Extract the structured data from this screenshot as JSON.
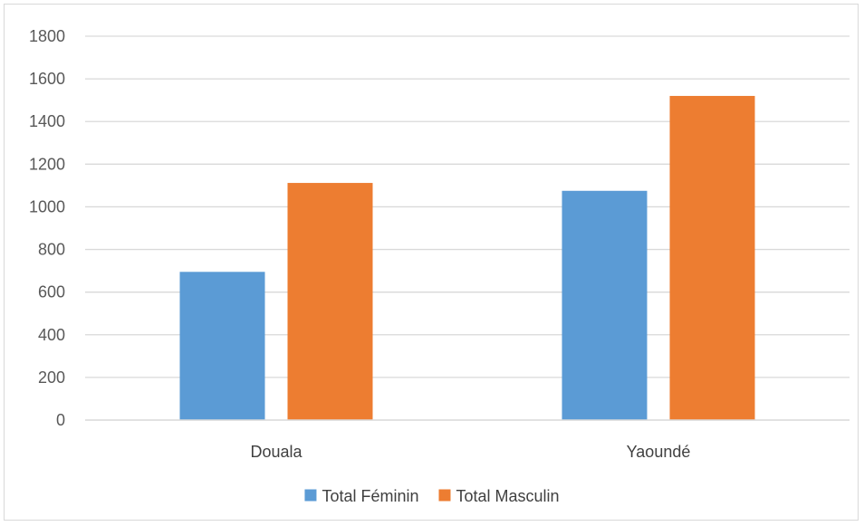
{
  "chart_data": {
    "type": "bar",
    "categories": [
      "Douala",
      "Yaoundé"
    ],
    "series": [
      {
        "name": "Total Féminin",
        "values": [
          695,
          1075
        ],
        "color": "#5b9bd5"
      },
      {
        "name": "Total Masculin",
        "values": [
          1112,
          1520
        ],
        "color": "#ed7d31"
      }
    ],
    "title": "",
    "xlabel": "",
    "ylabel": "",
    "ylim": [
      0,
      1800
    ],
    "yticks": [
      0,
      200,
      400,
      600,
      800,
      1000,
      1200,
      1400,
      1600,
      1800
    ],
    "grid": true,
    "legend_position": "bottom",
    "colors": {
      "grid": "#d9d9d9",
      "axis": "#d9d9d9",
      "border": "#d9d9d9"
    }
  }
}
